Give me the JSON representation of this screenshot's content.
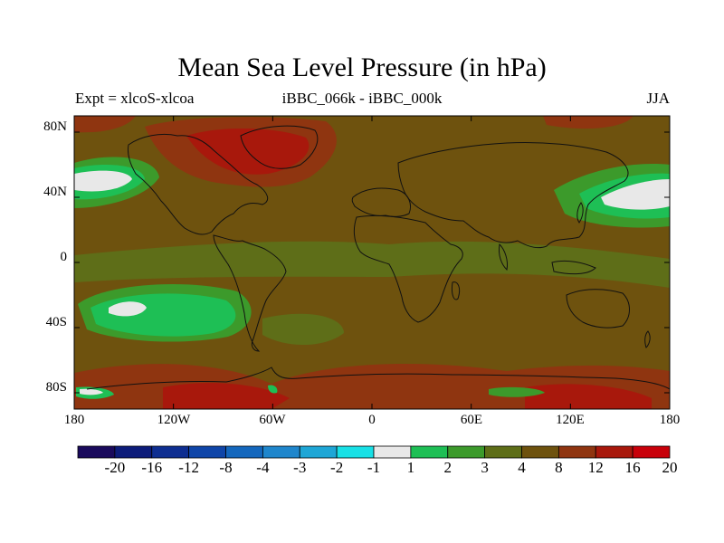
{
  "title": "Mean Sea Level Pressure (in hPa)",
  "subtitle_left": "Expt = xlcoS-xlcoa",
  "subtitle_center": "iBBC_066k - iBBC_000k",
  "subtitle_right": "JJA",
  "lat_ticks": [
    "80N",
    "40N",
    "0",
    "40S",
    "80S"
  ],
  "lon_ticks": [
    "180",
    "120W",
    "60W",
    "0",
    "60E",
    "120E",
    "180"
  ],
  "colorbar_labels": [
    "-20",
    "-16",
    "-12",
    "-8",
    "-4",
    "-3",
    "-2",
    "-1",
    "1",
    "2",
    "3",
    "4",
    "8",
    "12",
    "16",
    "20"
  ],
  "colorbar_colors": [
    "#1a0a5c",
    "#0d1c7a",
    "#0e2e91",
    "#0f45a8",
    "#1467bd",
    "#1f86cc",
    "#1ea6d6",
    "#18e0e6",
    "#e8e8e8",
    "#1ebf55",
    "#3c9a2b",
    "#5e6e18",
    "#6e520e",
    "#8f3510",
    "#a8180c",
    "#c8000a"
  ],
  "colors": {
    "ocean_base": "#6e520e",
    "warm_high": "#8f3510",
    "warm_peak": "#a8180c",
    "band_3": "#5e6e18",
    "band_2": "#3c9a2b",
    "band_1": "#1ebf55",
    "center_white": "#e8e8e8",
    "coast": "#111111"
  },
  "chart_data": {
    "type": "heatmap",
    "title": "Mean Sea Level Pressure (in hPa)",
    "variable": "Mean Sea Level Pressure",
    "units": "hPa",
    "experiment": "xlcoS-xlcoa",
    "difference": "iBBC_066k - iBBC_000k",
    "season": "JJA",
    "xlim": [
      -180,
      180
    ],
    "ylim": [
      -90,
      90
    ],
    "x_tick_values": [
      -180,
      -120,
      -60,
      0,
      60,
      120,
      180
    ],
    "y_tick_values": [
      80,
      40,
      0,
      -40,
      -80
    ],
    "contour_levels": [
      -20,
      -16,
      -12,
      -8,
      -4,
      -3,
      -2,
      -1,
      1,
      2,
      3,
      4,
      8,
      12,
      16,
      20
    ]
  }
}
